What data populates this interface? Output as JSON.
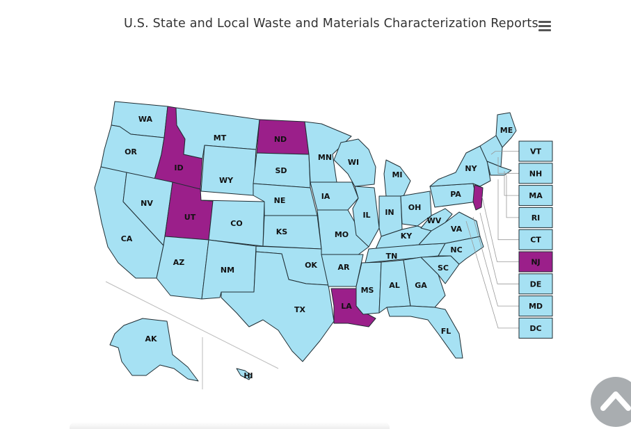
{
  "title": "U.S. State and Local Waste and Materials Characterization Reports",
  "menu_icon": "hamburger-menu-icon",
  "scroll_top_icon": "chevron-up-icon",
  "colors": {
    "default": "#a6e1f3",
    "highlight": "#9b1f8a",
    "border": "#1f2d33"
  },
  "highlighted_states": [
    "ID",
    "UT",
    "ND",
    "LA",
    "NJ"
  ],
  "states": [
    "WA",
    "OR",
    "CA",
    "ID",
    "NV",
    "MT",
    "WY",
    "UT",
    "AZ",
    "CO",
    "NM",
    "ND",
    "SD",
    "NE",
    "KS",
    "OK",
    "TX",
    "MN",
    "IA",
    "MO",
    "AR",
    "LA",
    "WI",
    "IL",
    "MI",
    "IN",
    "OH",
    "KY",
    "TN",
    "MS",
    "AL",
    "GA",
    "FL",
    "SC",
    "NC",
    "VA",
    "WV",
    "PA",
    "NY",
    "ME",
    "AK",
    "HI"
  ],
  "small_states": [
    "VT",
    "NH",
    "MA",
    "RI",
    "CT",
    "NJ",
    "DE",
    "MD",
    "DC"
  ]
}
